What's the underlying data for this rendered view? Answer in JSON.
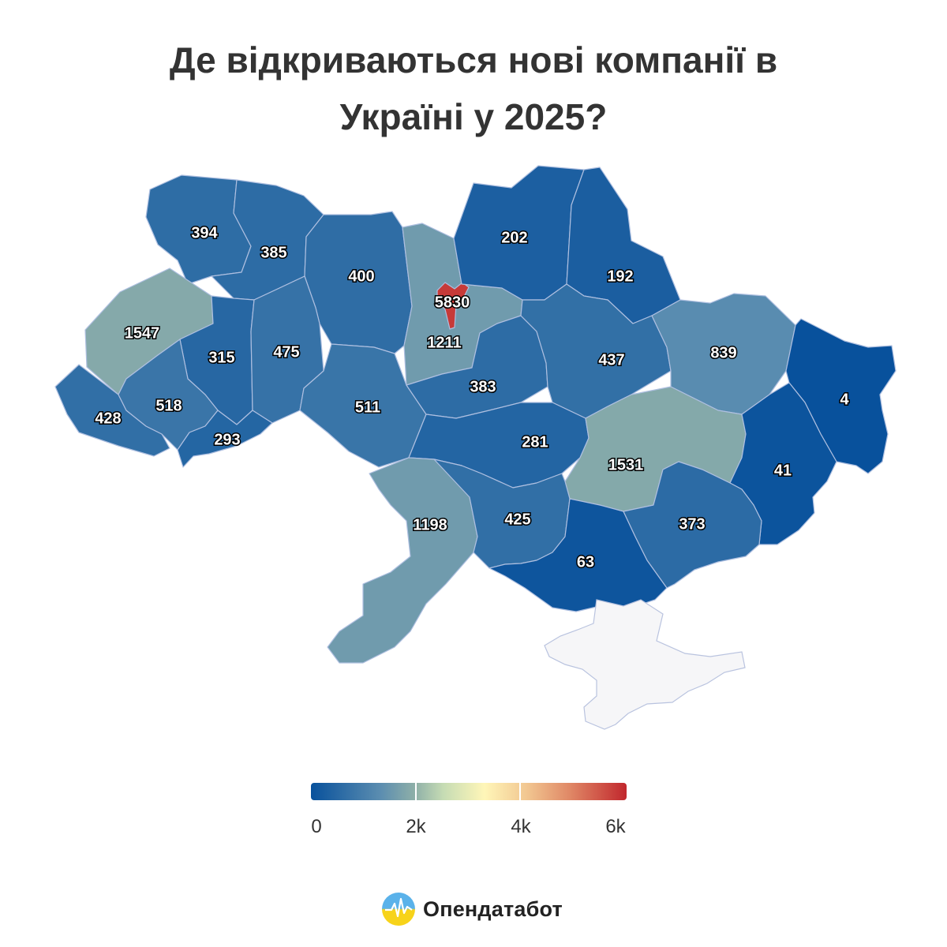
{
  "title": {
    "line1": "Де відкриваються нові компанії в",
    "line2": "Україні у 2025?"
  },
  "scale": {
    "min": 0,
    "max": 6000,
    "stops": [
      "#08519c",
      "#5b8db0",
      "#8fb0a8",
      "#c6dcb4",
      "#fff6b8",
      "#f2c892",
      "#e08866",
      "#c1272d"
    ]
  },
  "regions": [
    {
      "id": "volyn",
      "value": 394
    },
    {
      "id": "rivne",
      "value": 385
    },
    {
      "id": "zhytomyr",
      "value": 400
    },
    {
      "id": "kyiv-oblast",
      "value": 1211
    },
    {
      "id": "kyiv-city",
      "value": 5830
    },
    {
      "id": "chernihiv",
      "value": 202
    },
    {
      "id": "sumy",
      "value": 192
    },
    {
      "id": "lviv",
      "value": 1547
    },
    {
      "id": "ternopil",
      "value": 315
    },
    {
      "id": "khmelnytskyi",
      "value": 475
    },
    {
      "id": "vinnytsia",
      "value": 511
    },
    {
      "id": "cherkasy",
      "value": 383
    },
    {
      "id": "poltava",
      "value": 437
    },
    {
      "id": "kharkiv",
      "value": 839
    },
    {
      "id": "luhansk",
      "value": 4
    },
    {
      "id": "zakarpattia",
      "value": 428
    },
    {
      "id": "ivano-frankivsk",
      "value": 518
    },
    {
      "id": "chernivtsi",
      "value": 293
    },
    {
      "id": "kirovohrad",
      "value": 281
    },
    {
      "id": "dnipropetrovsk",
      "value": 1531
    },
    {
      "id": "donetsk",
      "value": 41
    },
    {
      "id": "odesa",
      "value": 1198
    },
    {
      "id": "mykolaiv",
      "value": 425
    },
    {
      "id": "kherson",
      "value": 63
    },
    {
      "id": "zaporizhzhia",
      "value": 373
    }
  ],
  "crimea": {
    "color": "#f6f6f8"
  },
  "legend": {
    "ticks": [
      "0",
      "2k",
      "4k",
      "6k"
    ]
  },
  "brand": {
    "name": "Опендатабот",
    "logo_icon": "opendatabot-logo-icon"
  }
}
